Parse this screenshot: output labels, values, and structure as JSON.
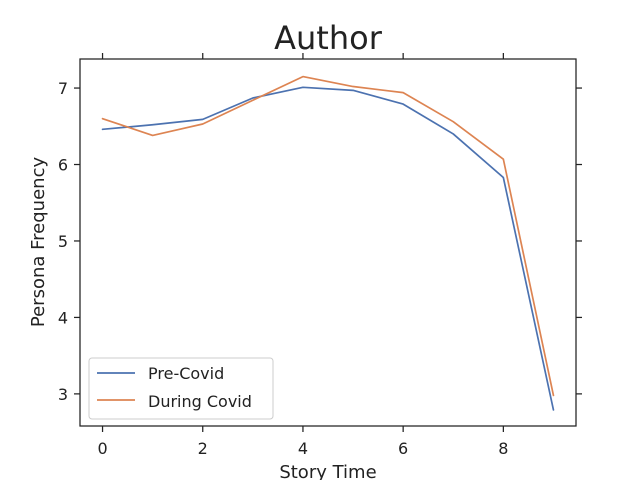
{
  "chart_data": {
    "type": "line",
    "title": "Author",
    "xlabel": "Story Time",
    "ylabel": "Persona Frequency",
    "x": [
      0,
      1,
      2,
      3,
      4,
      5,
      6,
      7,
      8,
      9
    ],
    "xlim": [
      -0.45,
      9.45
    ],
    "ylim": [
      2.58,
      7.38
    ],
    "xticks": [
      0,
      2,
      4,
      6,
      8
    ],
    "yticks": [
      3,
      4,
      5,
      6,
      7
    ],
    "grid": false,
    "legend_position": "lower-left",
    "series": [
      {
        "name": "Pre-Covid",
        "color": "#4c72b0",
        "values": [
          6.46,
          6.52,
          6.59,
          6.87,
          7.01,
          6.97,
          6.79,
          6.4,
          5.83,
          2.79
        ]
      },
      {
        "name": "During Covid",
        "color": "#dd8452",
        "values": [
          6.6,
          6.38,
          6.53,
          6.84,
          7.15,
          7.02,
          6.94,
          6.56,
          6.07,
          2.98
        ]
      }
    ]
  }
}
